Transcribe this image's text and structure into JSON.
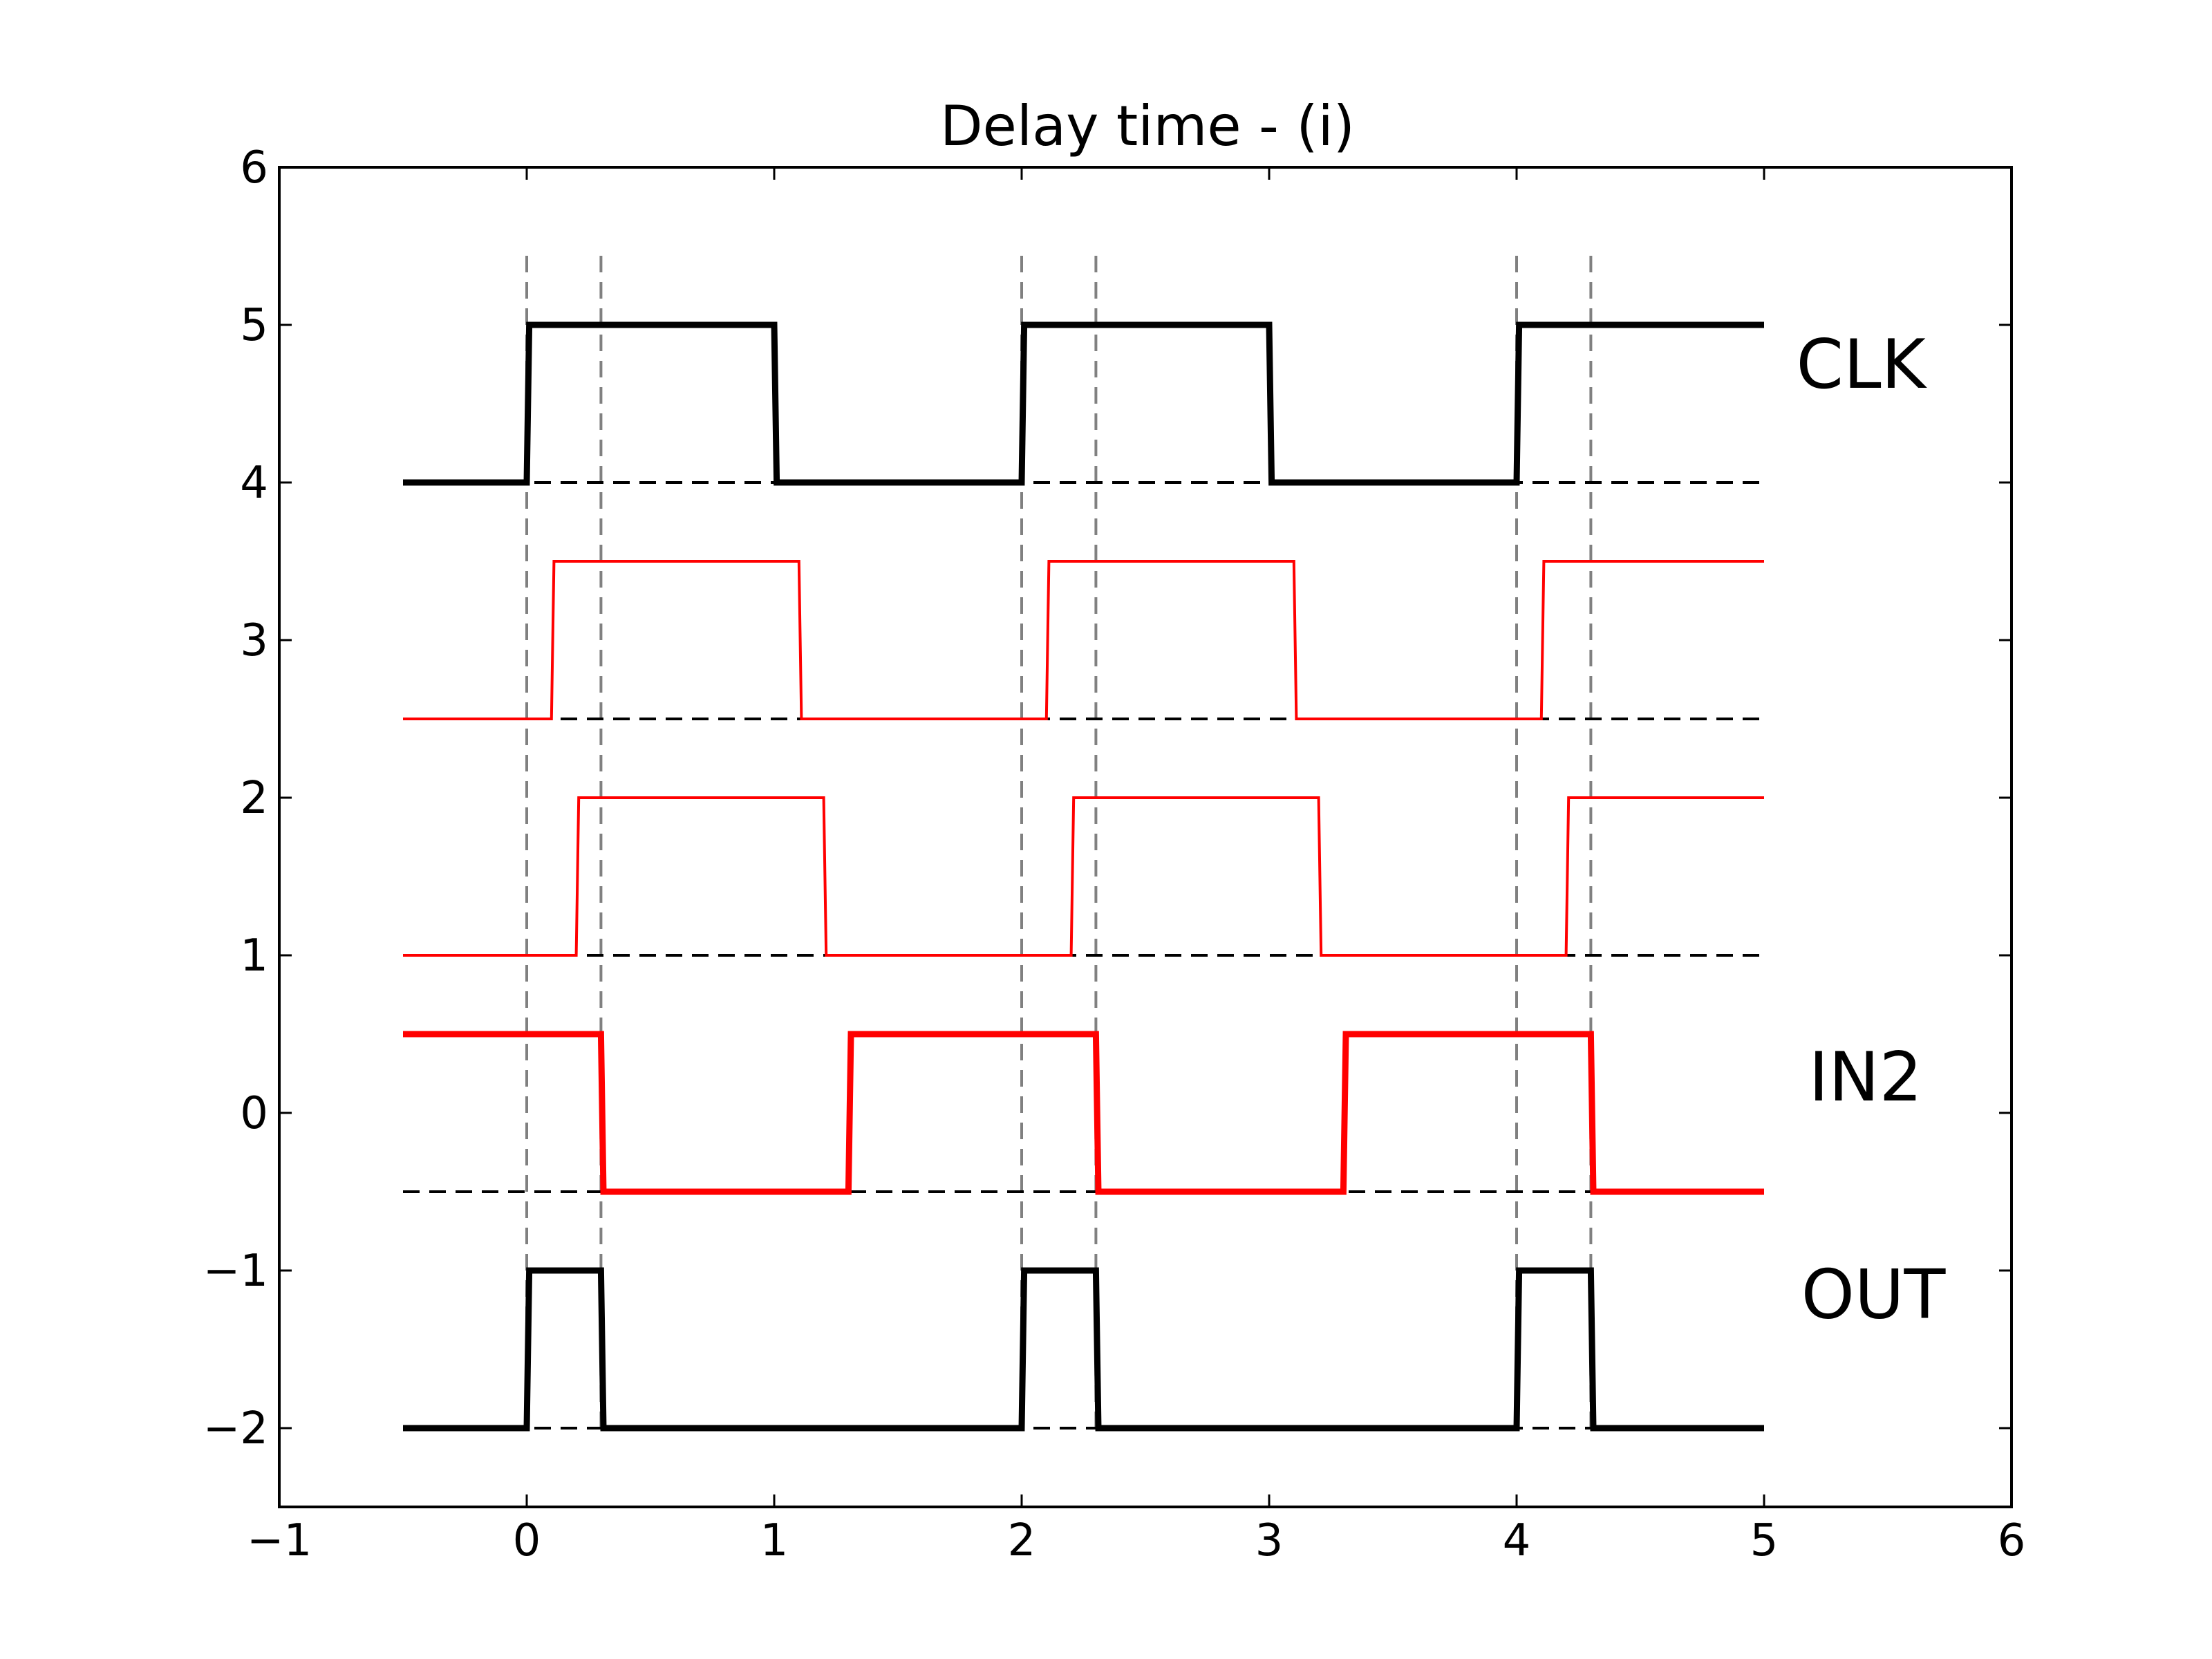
{
  "chart_data": {
    "type": "line",
    "title": "Delay time - (i)",
    "xlabel": "",
    "ylabel": "",
    "xlim": [
      -1,
      6
    ],
    "ylim": [
      -2.5,
      6
    ],
    "xticks": [
      -1,
      0,
      1,
      2,
      3,
      4,
      5,
      6
    ],
    "xtick_labels": [
      "−1",
      "0",
      "1",
      "2",
      "3",
      "4",
      "5",
      "6"
    ],
    "yticks": [
      -2,
      -1,
      0,
      1,
      2,
      3,
      4,
      5,
      6
    ],
    "ytick_labels": [
      "−2",
      "−1",
      "0",
      "1",
      "2",
      "3",
      "4",
      "5",
      "6"
    ],
    "grid": false,
    "colors": {
      "black": "#000000",
      "red": "#ff0000",
      "gray": "#808080"
    },
    "reference_vlines": {
      "x": [
        0,
        0.3,
        2,
        2.3,
        4,
        4.3
      ],
      "ymin": -2,
      "ymax": 5.5,
      "style": "dashed",
      "color": "#808080"
    },
    "baselines": [
      {
        "y": 4,
        "xmin": -0.5,
        "xmax": 5
      },
      {
        "y": 2.5,
        "xmin": -0.5,
        "xmax": 5
      },
      {
        "y": 1,
        "xmin": -0.5,
        "xmax": 5
      },
      {
        "y": -0.5,
        "xmin": -0.5,
        "xmax": 5
      },
      {
        "y": -2,
        "xmin": -0.5,
        "xmax": 5
      }
    ],
    "series": [
      {
        "name": "CLK",
        "color": "#000000",
        "weight": "thick",
        "x": [
          -0.5,
          0,
          0.01,
          1,
          1.01,
          2,
          2.01,
          3,
          3.01,
          4,
          4.01,
          5
        ],
        "y": [
          4,
          4,
          5,
          5,
          4,
          4,
          5,
          5,
          4,
          4,
          5,
          5
        ]
      },
      {
        "name": "",
        "color": "#ff0000",
        "weight": "thin",
        "x": [
          -0.5,
          0.1,
          0.11,
          1.1,
          1.11,
          2.1,
          2.11,
          3.1,
          3.11,
          4.1,
          4.11,
          5
        ],
        "y": [
          2.5,
          2.5,
          3.5,
          3.5,
          2.5,
          2.5,
          3.5,
          3.5,
          2.5,
          2.5,
          3.5,
          3.5
        ]
      },
      {
        "name": "",
        "color": "#ff0000",
        "weight": "thin",
        "x": [
          -0.5,
          0.2,
          0.21,
          1.2,
          1.21,
          2.2,
          2.21,
          3.2,
          3.21,
          4.2,
          4.21,
          5
        ],
        "y": [
          1,
          1,
          2,
          2,
          1,
          1,
          2,
          2,
          1,
          1,
          2,
          2
        ]
      },
      {
        "name": "IN2",
        "color": "#ff0000",
        "weight": "thick",
        "x": [
          -0.5,
          0.3,
          0.31,
          1.3,
          1.31,
          2.3,
          2.31,
          3.3,
          3.31,
          4.3,
          4.31,
          5
        ],
        "y": [
          0.5,
          0.5,
          -0.5,
          -0.5,
          0.5,
          0.5,
          -0.5,
          -0.5,
          0.5,
          0.5,
          -0.5,
          -0.5
        ]
      },
      {
        "name": "OUT",
        "color": "#000000",
        "weight": "thick",
        "x": [
          -0.5,
          0,
          0.01,
          0.3,
          0.31,
          2,
          2.01,
          2.3,
          2.31,
          4,
          4.01,
          4.3,
          4.31,
          5
        ],
        "y": [
          -2,
          -2,
          -1,
          -1,
          -2,
          -2,
          -1,
          -1,
          -2,
          -2,
          -1,
          -1,
          -2,
          -2
        ]
      }
    ],
    "annotations": [
      {
        "text": "CLK",
        "x": 5.13,
        "y": 4.6
      },
      {
        "text": "IN2",
        "x": 5.18,
        "y": 0.08
      },
      {
        "text": "OUT",
        "x": 5.15,
        "y": -1.3
      }
    ]
  }
}
